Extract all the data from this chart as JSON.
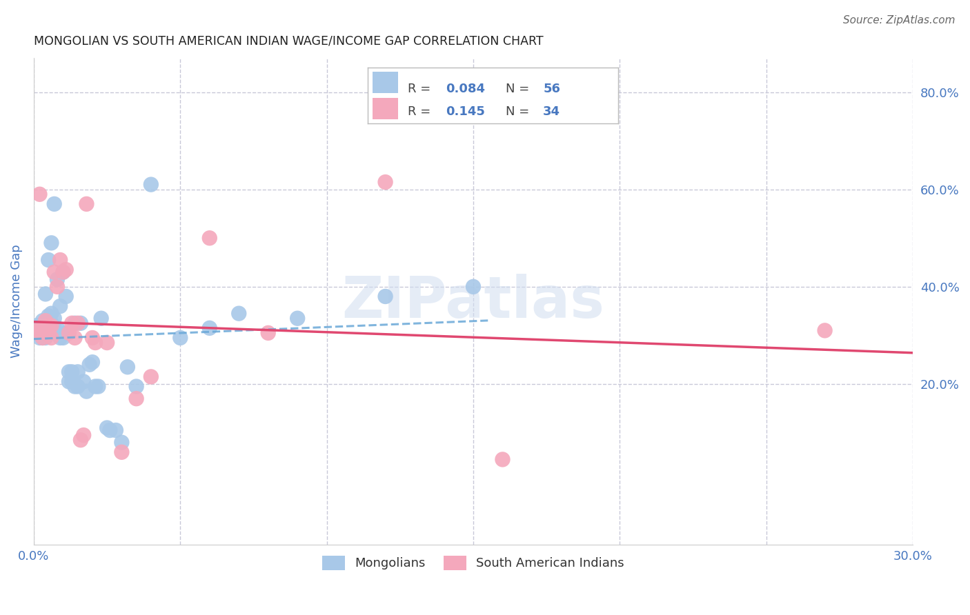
{
  "title": "MONGOLIAN VS SOUTH AMERICAN INDIAN WAGE/INCOME GAP CORRELATION CHART",
  "source": "Source: ZipAtlas.com",
  "ylabel": "Wage/Income Gap",
  "xlim": [
    0.0,
    0.3
  ],
  "ylim": [
    -0.13,
    0.87
  ],
  "x_ticks": [
    0.0,
    0.05,
    0.1,
    0.15,
    0.2,
    0.25,
    0.3
  ],
  "x_tick_labels": [
    "0.0%",
    "",
    "",
    "",
    "",
    "",
    "30.0%"
  ],
  "y_ticks": [
    0.2,
    0.4,
    0.6,
    0.8
  ],
  "y_tick_labels": [
    "20.0%",
    "40.0%",
    "60.0%",
    "80.0%"
  ],
  "mongolian_color": "#a8c8e8",
  "sai_color": "#f4a8bc",
  "trend_mongolian_color": "#6aa8d8",
  "trend_sai_color": "#e04870",
  "background_color": "#ffffff",
  "grid_color": "#c8c8d8",
  "title_color": "#222222",
  "axis_label_color": "#4878c0",
  "tick_color": "#4878c0",
  "legend_R1_val": "0.084",
  "legend_N1_val": "56",
  "legend_R2_val": "0.145",
  "legend_N2_val": "34",
  "legend_label1": "Mongolians",
  "legend_label2": "South American Indians",
  "mongolians_x": [
    0.001,
    0.001,
    0.002,
    0.002,
    0.003,
    0.003,
    0.003,
    0.004,
    0.004,
    0.004,
    0.005,
    0.005,
    0.005,
    0.006,
    0.006,
    0.006,
    0.007,
    0.007,
    0.007,
    0.008,
    0.008,
    0.009,
    0.009,
    0.01,
    0.01,
    0.011,
    0.011,
    0.012,
    0.012,
    0.013,
    0.013,
    0.014,
    0.014,
    0.015,
    0.015,
    0.016,
    0.017,
    0.018,
    0.019,
    0.02,
    0.021,
    0.022,
    0.023,
    0.025,
    0.026,
    0.028,
    0.03,
    0.032,
    0.035,
    0.04,
    0.05,
    0.06,
    0.07,
    0.09,
    0.12,
    0.15
  ],
  "mongolians_y": [
    0.305,
    0.32,
    0.295,
    0.31,
    0.295,
    0.31,
    0.33,
    0.295,
    0.305,
    0.385,
    0.32,
    0.34,
    0.455,
    0.325,
    0.345,
    0.49,
    0.315,
    0.335,
    0.57,
    0.315,
    0.415,
    0.295,
    0.36,
    0.295,
    0.43,
    0.305,
    0.38,
    0.205,
    0.225,
    0.205,
    0.225,
    0.195,
    0.325,
    0.195,
    0.225,
    0.325,
    0.205,
    0.185,
    0.24,
    0.245,
    0.195,
    0.195,
    0.335,
    0.11,
    0.105,
    0.105,
    0.08,
    0.235,
    0.195,
    0.61,
    0.295,
    0.315,
    0.345,
    0.335,
    0.38,
    0.4
  ],
  "sai_x": [
    0.001,
    0.002,
    0.002,
    0.003,
    0.003,
    0.004,
    0.004,
    0.005,
    0.005,
    0.006,
    0.006,
    0.007,
    0.008,
    0.009,
    0.01,
    0.011,
    0.012,
    0.013,
    0.014,
    0.015,
    0.016,
    0.017,
    0.018,
    0.02,
    0.021,
    0.025,
    0.03,
    0.035,
    0.04,
    0.06,
    0.08,
    0.12,
    0.16,
    0.27
  ],
  "sai_y": [
    0.31,
    0.31,
    0.59,
    0.295,
    0.31,
    0.305,
    0.33,
    0.305,
    0.32,
    0.295,
    0.32,
    0.43,
    0.4,
    0.455,
    0.43,
    0.435,
    0.305,
    0.325,
    0.295,
    0.325,
    0.085,
    0.095,
    0.57,
    0.295,
    0.285,
    0.285,
    0.06,
    0.17,
    0.215,
    0.5,
    0.305,
    0.615,
    0.045,
    0.31
  ],
  "watermark": "ZIPatlas",
  "watermark_color": "#d0ddf0"
}
